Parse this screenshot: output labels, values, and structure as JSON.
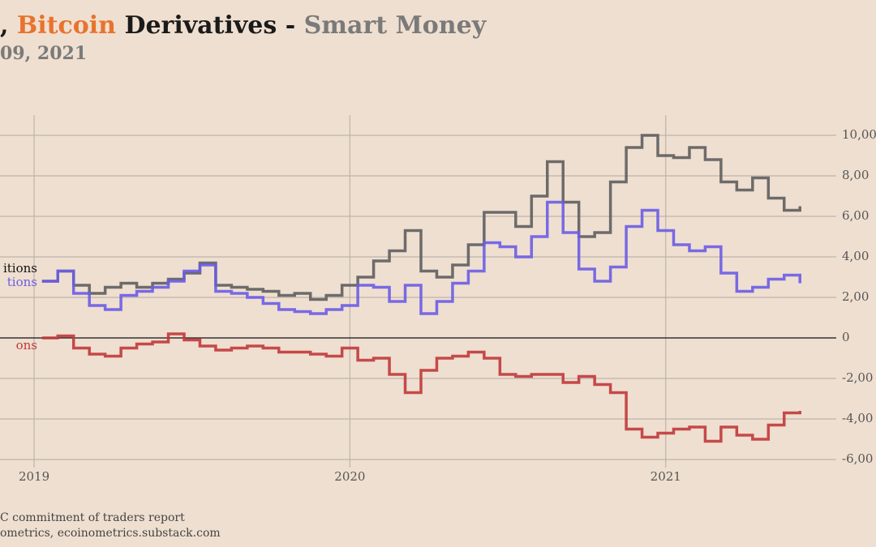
{
  "chart_data": {
    "type": "step",
    "title": [
      {
        "text": ", ",
        "color": "#1a1a1a"
      },
      {
        "text": "Bitcoin",
        "color": "#e8732e"
      },
      {
        "text": " Derivatives - ",
        "color": "#1a1a1a"
      },
      {
        "text": "Smart Money",
        "color": "#7a7a7a"
      }
    ],
    "subtitle": "09, 2021",
    "notes": [
      "C commitment of traders report",
      "ometrics, ecoinometrics.substack.com"
    ],
    "x": [
      2019.025,
      2019.075,
      2019.125,
      2019.175,
      2019.225,
      2019.275,
      2019.325,
      2019.375,
      2019.425,
      2019.475,
      2019.525,
      2019.575,
      2019.625,
      2019.675,
      2019.725,
      2019.775,
      2019.825,
      2019.875,
      2019.925,
      2019.975,
      2020.025,
      2020.075,
      2020.125,
      2020.175,
      2020.225,
      2020.275,
      2020.325,
      2020.375,
      2020.425,
      2020.475,
      2020.525,
      2020.575,
      2020.625,
      2020.675,
      2020.725,
      2020.775,
      2020.825,
      2020.875,
      2020.925,
      2020.975,
      2021.025,
      2021.075,
      2021.125,
      2021.175,
      2021.225,
      2021.275,
      2021.325,
      2021.375,
      2021.425
    ],
    "series": [
      {
        "name": "itions",
        "color": "#5e5e5e",
        "values": [
          2800,
          3300,
          2600,
          2200,
          2500,
          2700,
          2500,
          2700,
          2900,
          3200,
          3700,
          2600,
          2500,
          2400,
          2300,
          2100,
          2200,
          1900,
          2100,
          2600,
          3000,
          3800,
          4300,
          5300,
          3300,
          3000,
          3600,
          4600,
          6200,
          6200,
          5500,
          7000,
          8700,
          6700,
          5000,
          5200,
          7700,
          9400,
          10000,
          9000,
          8900,
          9400,
          8800,
          7700,
          7300,
          7900,
          6900,
          6300,
          6500
        ]
      },
      {
        "name": "tions",
        "color": "#6a5ce6",
        "values": [
          2800,
          3300,
          2200,
          1600,
          1400,
          2100,
          2300,
          2500,
          2800,
          3300,
          3600,
          2300,
          2200,
          2000,
          1700,
          1400,
          1300,
          1200,
          1400,
          1600,
          2600,
          2500,
          1800,
          2600,
          1200,
          1800,
          2700,
          3300,
          4700,
          4500,
          4000,
          5000,
          6700,
          5200,
          3400,
          2800,
          3500,
          5500,
          6300,
          5300,
          4600,
          4300,
          4500,
          3200,
          2300,
          2500,
          2900,
          3100,
          2700
        ]
      },
      {
        "name": "ons",
        "color": "#c0393b",
        "values": [
          0,
          100,
          -500,
          -800,
          -900,
          -500,
          -300,
          -200,
          200,
          -100,
          -400,
          -600,
          -500,
          -400,
          -500,
          -700,
          -700,
          -800,
          -900,
          -500,
          -1100,
          -1000,
          -1800,
          -2700,
          -1600,
          -1000,
          -900,
          -700,
          -1000,
          -1800,
          -1900,
          -1800,
          -1800,
          -2200,
          -1900,
          -2300,
          -2700,
          -4500,
          -4900,
          -4700,
          -4500,
          -4400,
          -5100,
          -4400,
          -4800,
          -5000,
          -4300,
          -3700,
          -3600
        ]
      }
    ],
    "xlim": [
      2018.892,
      2021.54
    ],
    "xticks": [
      2019,
      2020,
      2021
    ],
    "ylim": [
      -6400,
      11000
    ],
    "yticks": [
      {
        "value": 10000,
        "label": "10,00"
      },
      {
        "value": 8000,
        "label": "8,00"
      },
      {
        "value": 6000,
        "label": "6,00"
      },
      {
        "value": 4000,
        "label": "4,00"
      },
      {
        "value": 2000,
        "label": "2,00"
      },
      0,
      {
        "value": -2000,
        "label": "-2,00"
      },
      {
        "value": -4000,
        "label": "-4,00"
      },
      {
        "value": -6000,
        "label": "-6,00"
      }
    ],
    "grid": true
  }
}
